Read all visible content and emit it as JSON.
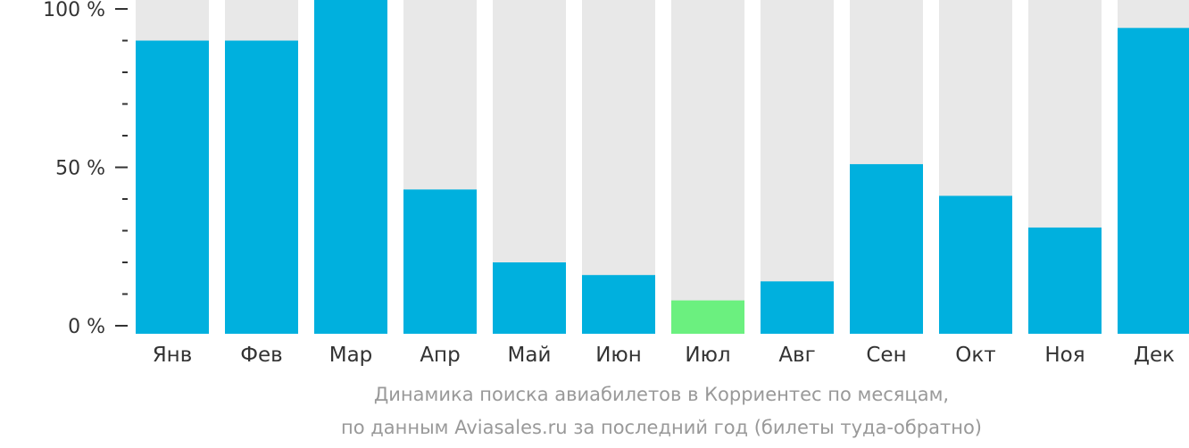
{
  "chart_data": {
    "type": "bar",
    "caption_line_1": "Динамика поиска авиабилетов в Корриентес по месяцам,",
    "caption_line_2": "по данным Aviasales.ru за последний год (билеты туда-обратно)",
    "categories": [
      "Янв",
      "Фев",
      "Мар",
      "Апр",
      "Май",
      "Июн",
      "Июл",
      "Авг",
      "Сен",
      "Окт",
      "Ноя",
      "Дек"
    ],
    "values": [
      90,
      90,
      106,
      43,
      20,
      16,
      8,
      14,
      51,
      41,
      31,
      94
    ],
    "highlight_index": 6,
    "y_ticks": [
      {
        "value": 0,
        "label": "0 %"
      },
      {
        "value": 50,
        "label": "50 %"
      },
      {
        "value": 100,
        "label": "100 %"
      }
    ],
    "minor_tick_step": 10,
    "ylim": [
      0,
      106
    ],
    "colors": {
      "bar": "#00b0de",
      "highlight": "#6bf07f",
      "track": "#e8e8e8",
      "axis": "#333333"
    }
  }
}
